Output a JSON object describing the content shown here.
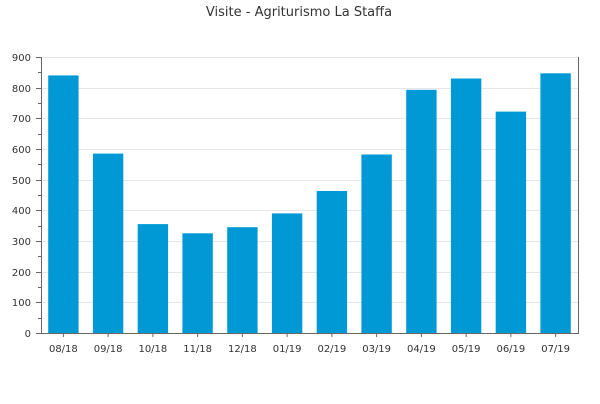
{
  "chart_data": {
    "type": "bar",
    "title": "Visite - Agriturismo La Staffa",
    "xlabel": "",
    "ylabel": "",
    "categories": [
      "08/18",
      "09/18",
      "10/18",
      "11/18",
      "12/18",
      "01/19",
      "02/19",
      "03/19",
      "04/19",
      "05/19",
      "06/19",
      "07/19"
    ],
    "values": [
      840,
      585,
      355,
      325,
      345,
      390,
      463,
      582,
      793,
      830,
      722,
      847
    ],
    "ylim": [
      0,
      900
    ],
    "yticks": [
      0,
      100,
      200,
      300,
      400,
      500,
      600,
      700,
      800,
      900
    ],
    "yticks_labels": [
      "0",
      "100",
      "200",
      "300",
      "400",
      "500",
      "600",
      "700",
      "800",
      "900"
    ],
    "grid": true,
    "legend": "none",
    "colors": {
      "bar": "#0099d6"
    }
  }
}
